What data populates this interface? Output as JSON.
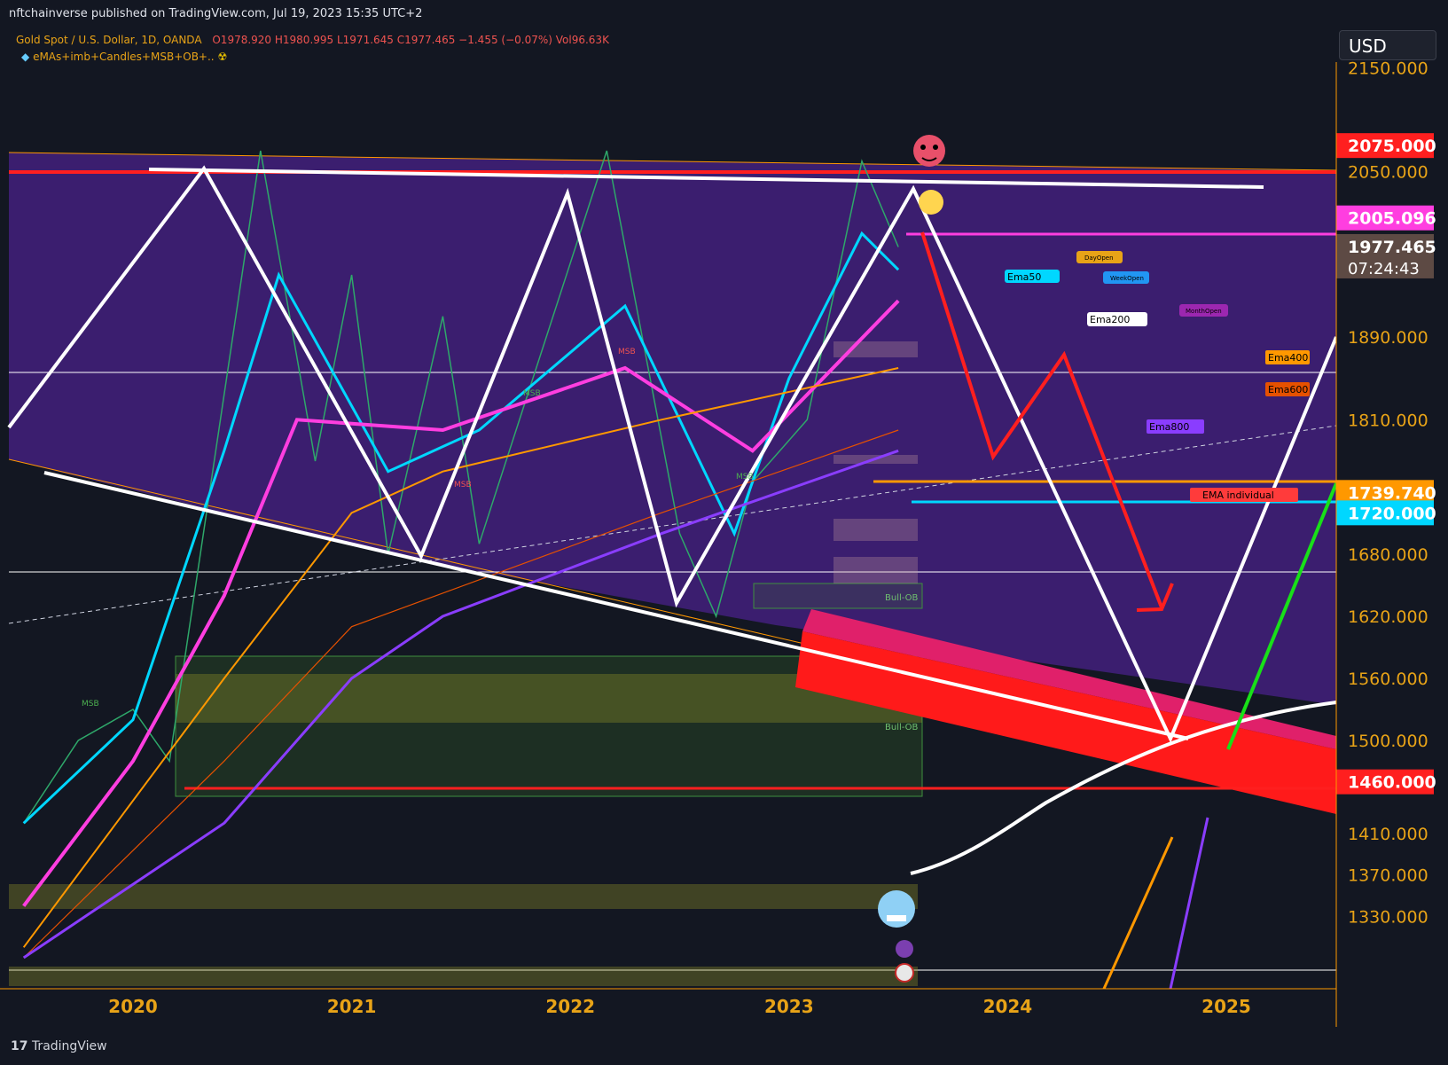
{
  "header": {
    "publisher": "nftchainverse published on TradingView.com, Jul 19, 2023 15:35 UTC+2",
    "symbol": "Gold Spot / U.S. Dollar, 1D, OANDA",
    "ohlc": "O1978.920  H1980.995  L1971.645  C1977.465  −1.455 (−0.07%)  Vol96.63K",
    "indicator": "eMAs+imb+Candles+MSB+OB+..",
    "currency": "USD",
    "brand": "TradingView"
  },
  "colors": {
    "background": "#131722",
    "zone": "#3d1f74",
    "resistance": "#ff1f1f",
    "pink": "#ff3ee0",
    "orange": "#ff9800",
    "cyan": "#00d7ff",
    "green": "#18e018",
    "purple": "#8a3dff"
  },
  "chart_data": {
    "type": "line",
    "title": "Gold Spot / U.S. Dollar, 1D, OANDA",
    "xlabel": "",
    "ylabel": "",
    "x_tick_labels": [
      "2020",
      "2021",
      "2022",
      "2023",
      "2024",
      "2025"
    ],
    "y_tick_labels": [
      "2150.000",
      "2050.000",
      "1890.000",
      "1810.000",
      "1680.000",
      "1620.000",
      "1560.000",
      "1500.000",
      "1410.000",
      "1370.000",
      "1330.000"
    ],
    "ylim": [
      1290,
      2200
    ],
    "price_labels": [
      {
        "value": 2075.0,
        "text": "2075.000",
        "color": "#ff1f1f"
      },
      {
        "value": 2005.096,
        "text": "2005.096",
        "color": "#ff3ee0"
      },
      {
        "value": 1977.465,
        "text": "1977.465",
        "sub": "07:24:43",
        "color": "#5d4a44"
      },
      {
        "value": 1739.74,
        "text": "1739.740",
        "color": "#ff9800"
      },
      {
        "value": 1720.0,
        "text": "1720.000",
        "color": "#00d7ff"
      },
      {
        "value": 1460.0,
        "text": "1460.000",
        "color": "#ff1f1f"
      }
    ],
    "annotations": [
      "Ema50",
      "Ema200",
      "Ema400",
      "Ema600",
      "Ema800",
      "EMA individual",
      "DayOpen",
      "WeekOpen",
      "MonthOpen",
      "Bull-OB",
      "Bull-OB",
      "MSB"
    ],
    "series": [
      {
        "name": "Gold price",
        "x": [
          "2019-07",
          "2019-10",
          "2020-01",
          "2020-03",
          "2020-08",
          "2020-11",
          "2021-01",
          "2021-03",
          "2021-06",
          "2021-08",
          "2022-03",
          "2022-07",
          "2022-09",
          "2022-11",
          "2023-02",
          "2023-05",
          "2023-07"
        ],
        "values": [
          1420,
          1500,
          1530,
          1480,
          2070,
          1770,
          1950,
          1680,
          1910,
          1690,
          2070,
          1700,
          1620,
          1750,
          1810,
          2060,
          1977
        ]
      },
      {
        "name": "Ema50",
        "x": [
          "2019-07",
          "2020-01",
          "2020-06",
          "2020-09",
          "2021-03",
          "2021-08",
          "2022-04",
          "2022-10",
          "2023-01",
          "2023-05",
          "2023-07"
        ],
        "values": [
          1420,
          1520,
          1780,
          1950,
          1760,
          1800,
          1920,
          1700,
          1850,
          1990,
          1955
        ]
      },
      {
        "name": "Ema200",
        "x": [
          "2019-07",
          "2020-01",
          "2020-06",
          "2020-10",
          "2021-06",
          "2022-04",
          "2022-11",
          "2023-07"
        ],
        "values": [
          1340,
          1480,
          1640,
          1810,
          1800,
          1860,
          1780,
          1925
        ]
      },
      {
        "name": "Ema400",
        "x": [
          "2019-07",
          "2020-06",
          "2021-01",
          "2021-06",
          "2022-06",
          "2023-07"
        ],
        "values": [
          1300,
          1560,
          1720,
          1760,
          1810,
          1860
        ]
      },
      {
        "name": "Ema600",
        "x": [
          "2019-07",
          "2020-06",
          "2021-01",
          "2022-06",
          "2023-07"
        ],
        "values": [
          1290,
          1480,
          1610,
          1720,
          1800
        ]
      },
      {
        "name": "Ema800",
        "x": [
          "2019-07",
          "2020-06",
          "2021-01",
          "2021-06",
          "2022-06",
          "2023-07"
        ],
        "values": [
          1290,
          1420,
          1560,
          1620,
          1700,
          1780
        ]
      },
      {
        "name": "Projection",
        "x": [
          "2023-07",
          "2023-11",
          "2024-04",
          "2024-09"
        ],
        "values": [
          2030,
          1760,
          1860,
          1620
        ]
      }
    ]
  }
}
